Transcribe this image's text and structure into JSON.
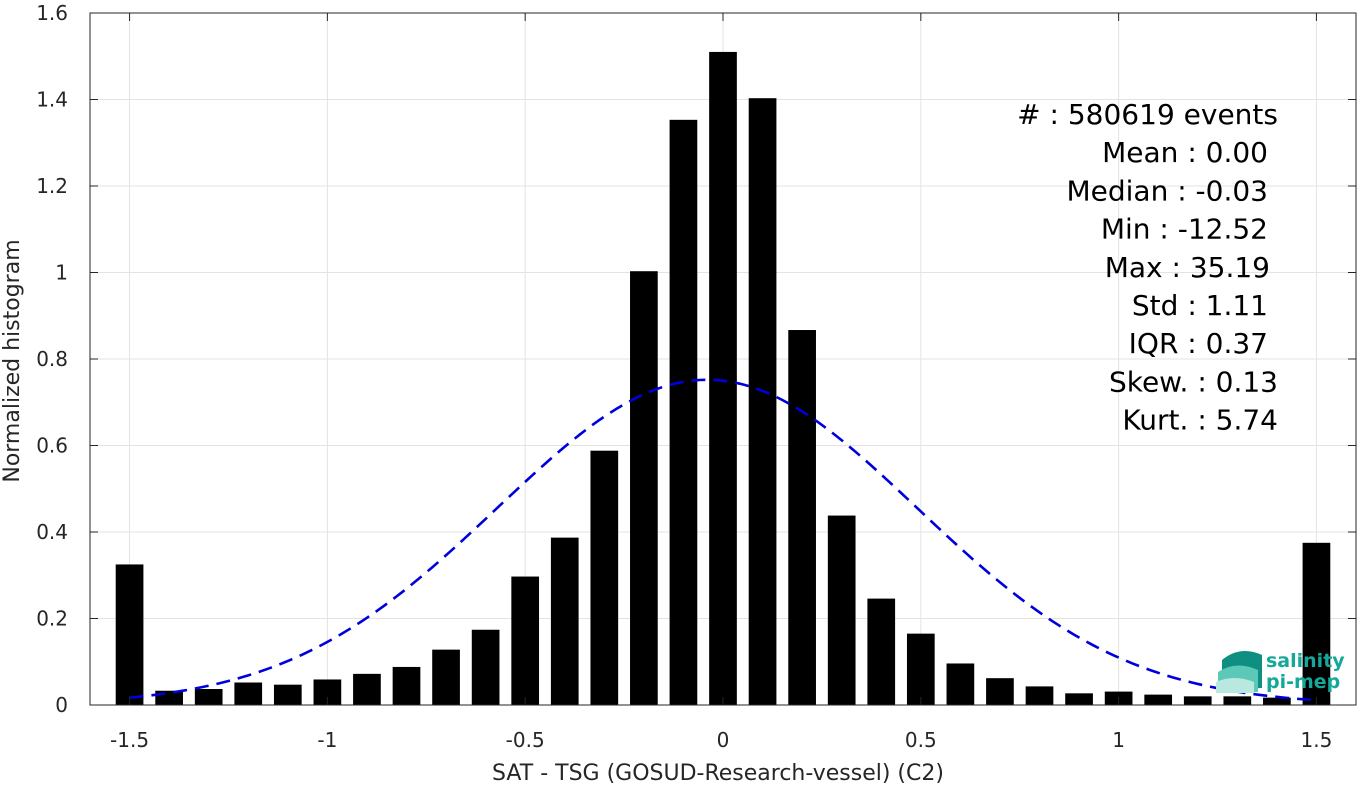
{
  "chart_data": {
    "type": "bar",
    "xlabel": "SAT - TSG (GOSUD-Research-vessel) (C2)",
    "ylabel": "Normalized histogram",
    "xlim": [
      -1.6,
      1.6
    ],
    "ylim": [
      0,
      1.6
    ],
    "xticks": [
      -1.5,
      -1,
      -0.5,
      0,
      0.5,
      1,
      1.5
    ],
    "xtick_labels": [
      "-1.5",
      "-1",
      "-0.5",
      "0",
      "0.5",
      "1",
      "1.5"
    ],
    "yticks": [
      0,
      0.2,
      0.4,
      0.6,
      0.8,
      1,
      1.2,
      1.4,
      1.6
    ],
    "ytick_labels": [
      "0",
      "0.2",
      "0.4",
      "0.6",
      "0.8",
      "1",
      "1.2",
      "1.4",
      "1.6"
    ],
    "grid": true,
    "bar_color": "#000000",
    "bar_width": 0.07,
    "bars": {
      "x": [
        -1.5,
        -1.4,
        -1.3,
        -1.2,
        -1.1,
        -1.0,
        -0.9,
        -0.8,
        -0.7,
        -0.6,
        -0.5,
        -0.4,
        -0.3,
        -0.2,
        -0.1,
        0.0,
        0.1,
        0.2,
        0.3,
        0.4,
        0.5,
        0.6,
        0.7,
        0.8,
        0.9,
        1.0,
        1.1,
        1.2,
        1.3,
        1.4,
        1.5
      ],
      "values": [
        0.325,
        0.033,
        0.037,
        0.052,
        0.047,
        0.059,
        0.072,
        0.088,
        0.128,
        0.174,
        0.297,
        0.387,
        0.588,
        1.003,
        1.353,
        1.51,
        1.403,
        0.867,
        0.438,
        0.246,
        0.165,
        0.096,
        0.062,
        0.043,
        0.027,
        0.031,
        0.024,
        0.02,
        0.02,
        0.017,
        0.375
      ]
    },
    "fit_curve": {
      "type": "gaussian",
      "style": "dashed",
      "color": "#0000dd",
      "peak": 0.752,
      "center": -0.04,
      "sigma": 0.53,
      "x_range": [
        -1.5,
        1.5
      ]
    },
    "annotations": [
      "#  : 580619 events",
      "Mean : 0.00",
      "Median : -0.03",
      "Min : -12.52",
      "Max : 35.19",
      "Std : 1.11",
      "IQR : 0.37",
      "Skew. : 0.13",
      "Kurt. : 5.74"
    ]
  },
  "logo": {
    "line1": "salinity",
    "line2": "pi-mep",
    "color": "#14a89a"
  }
}
